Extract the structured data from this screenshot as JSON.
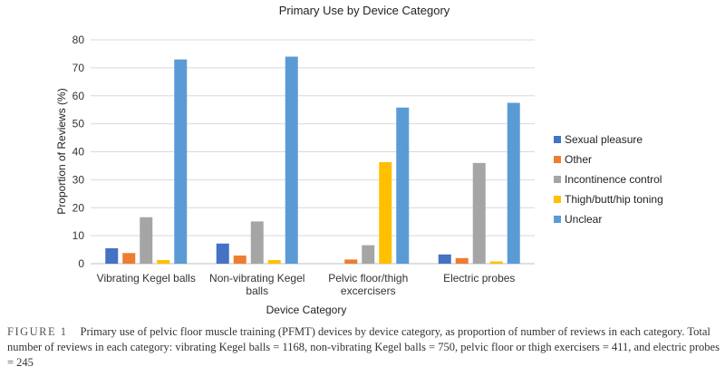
{
  "chart_data": {
    "type": "bar",
    "title": "Primary Use by Device Category",
    "xlabel": "Device Category",
    "ylabel": "Proportion of Reviews (%)",
    "ylim": [
      0,
      80
    ],
    "yticks": [
      0,
      10,
      20,
      30,
      40,
      50,
      60,
      70,
      80
    ],
    "grid": true,
    "legend_position": "right",
    "categories": [
      [
        "Vibrating Kegel balls"
      ],
      [
        "Non-vibrating Kegel",
        "balls"
      ],
      [
        "Pelvic floor/thigh",
        "excercisers"
      ],
      [
        "Electric probes"
      ]
    ],
    "series": [
      {
        "name": "Sexual pleasure",
        "color": "#4472C4",
        "values": [
          5.5,
          7.2,
          0,
          3.3
        ]
      },
      {
        "name": "Other",
        "color": "#ED7D31",
        "values": [
          3.8,
          2.9,
          1.5,
          2.0
        ]
      },
      {
        "name": "Incontinence control",
        "color": "#A5A5A5",
        "values": [
          16.6,
          15.1,
          6.6,
          36.0
        ]
      },
      {
        "name": "Thigh/butt/hip toning",
        "color": "#FFC000",
        "values": [
          1.3,
          1.3,
          36.3,
          0.8
        ]
      },
      {
        "name": "Unclear",
        "color": "#5B9BD5",
        "values": [
          73.0,
          74.0,
          55.8,
          57.5
        ]
      }
    ]
  },
  "caption": {
    "label": "FIGURE 1",
    "text": "Primary use of pelvic floor muscle training (PFMT) devices by device category, as proportion of number of reviews in each category. Total number of reviews in each category: vibrating Kegel balls = 1168, non-vibrating Kegel balls = 750, pelvic floor or thigh exercisers = 411, and electric probes = 245"
  }
}
